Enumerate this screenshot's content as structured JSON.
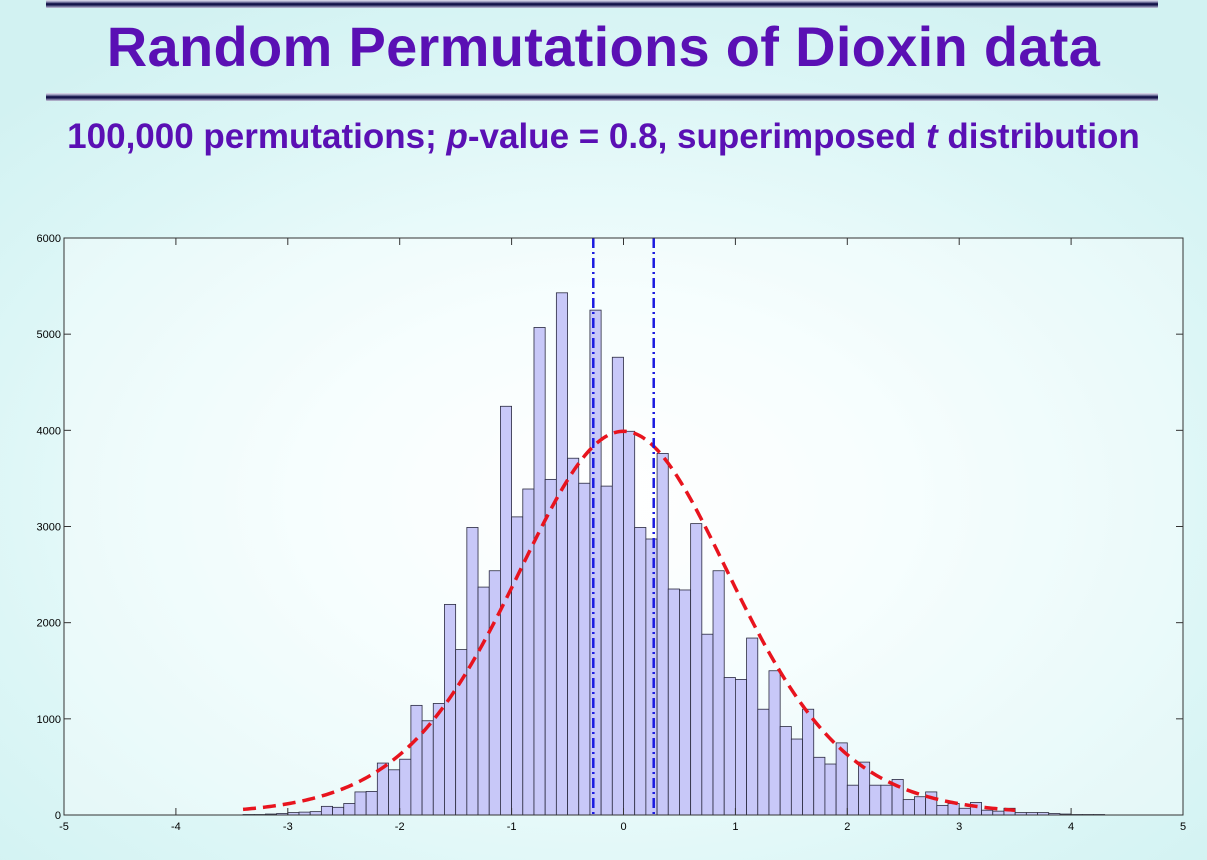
{
  "page": {
    "title": "Random Permutations of Dioxin data",
    "subtitle_parts": [
      {
        "text": "100,000 permutations; ",
        "italic": false
      },
      {
        "text": "p",
        "italic": true
      },
      {
        "text": "-value = 0.8, superimposed ",
        "italic": false
      },
      {
        "text": "t",
        "italic": true
      },
      {
        "text": " distribution",
        "italic": false
      }
    ]
  },
  "colors": {
    "title": "#5a10b4",
    "bar_fill": "#c8c8f8",
    "bar_stroke": "#2a2a40",
    "t_curve": "#e8141e",
    "vlines": "#1a1ae0",
    "axes": "#333333"
  },
  "chart_data": {
    "type": "bar",
    "title": "",
    "xlabel": "",
    "ylabel": "",
    "xlim": [
      -5,
      5
    ],
    "ylim": [
      0,
      6000
    ],
    "xticks": [
      -5,
      -4,
      -3,
      -2,
      -1,
      0,
      1,
      2,
      3,
      4,
      5
    ],
    "yticks": [
      0,
      1000,
      2000,
      3000,
      4000,
      5000,
      6000
    ],
    "grid": false,
    "legend": "none",
    "histogram": {
      "bin_start": -3.4,
      "bin_width": 0.1,
      "values": [
        5,
        5,
        10,
        15,
        25,
        30,
        35,
        90,
        80,
        120,
        240,
        245,
        540,
        470,
        580,
        1140,
        980,
        1160,
        2190,
        1720,
        2990,
        2370,
        2540,
        4250,
        3100,
        3390,
        5070,
        3490,
        5430,
        3710,
        3450,
        5250,
        3420,
        4760,
        3990,
        2990,
        2870,
        3760,
        2350,
        2340,
        3030,
        1880,
        2540,
        1430,
        1410,
        1840,
        1100,
        1500,
        920,
        790,
        1100,
        600,
        530,
        750,
        310,
        550,
        310,
        310,
        370,
        160,
        190,
        240,
        100,
        120,
        70,
        130,
        50,
        40,
        70,
        25,
        25,
        25,
        15,
        10,
        5,
        5,
        5
      ]
    },
    "curve": {
      "name": "t distribution",
      "x_start": -3.4,
      "x_end": 3.5,
      "peak": 3990,
      "df": 10
    },
    "vlines": [
      -0.27,
      0.27
    ]
  }
}
